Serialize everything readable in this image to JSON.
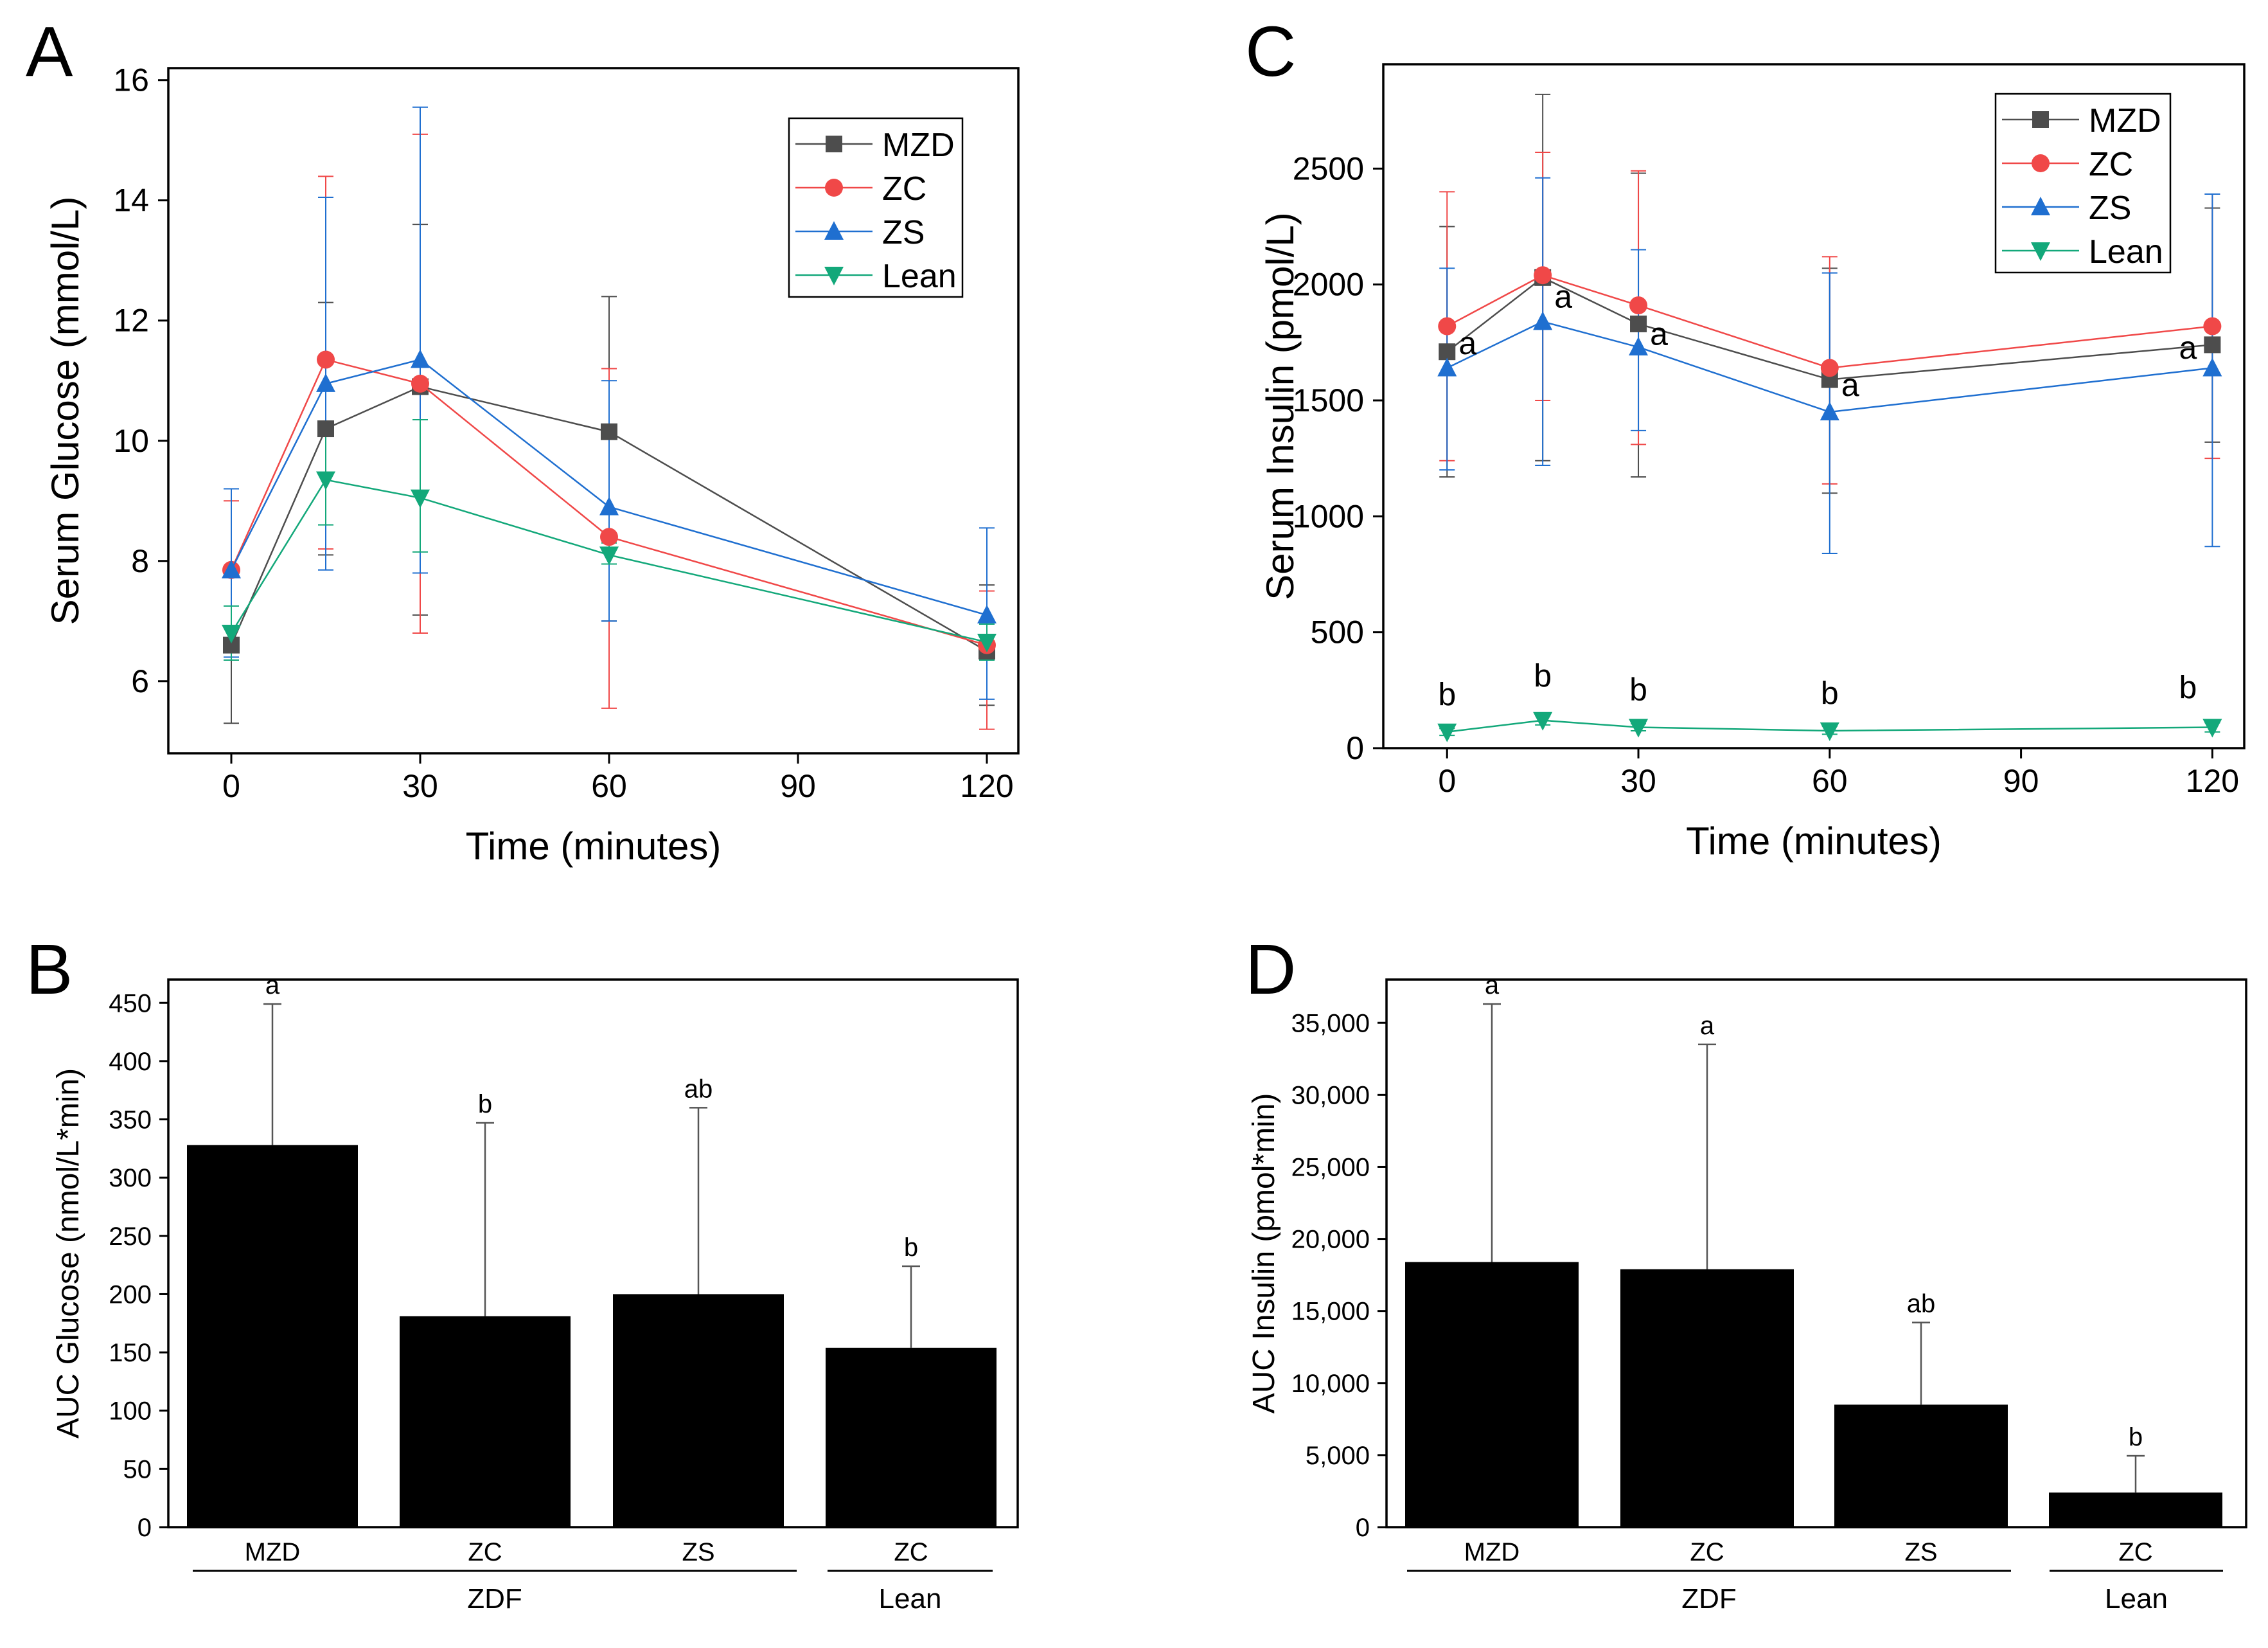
{
  "chart_data": [
    {
      "panel": "A",
      "type": "line",
      "xlabel": "Time (minutes)",
      "ylabel": "Serum Glucose (mmol/L)",
      "xlim": [
        -10,
        125
      ],
      "ylim": [
        4.8,
        16.2
      ],
      "xticks": [
        0,
        30,
        60,
        90,
        120
      ],
      "yticks": [
        6,
        8,
        10,
        12,
        14,
        16
      ],
      "x": [
        0,
        15,
        30,
        60,
        120
      ],
      "legend_position": "top-right",
      "series": [
        {
          "name": "MZD",
          "color": "#4d4d4d",
          "marker": "square",
          "values": [
            6.6,
            10.2,
            10.9,
            10.15,
            6.5
          ],
          "err_high": [
            6.6,
            12.3,
            13.6,
            12.4,
            7.6
          ],
          "err_low": [
            5.3,
            8.1,
            7.1,
            7.0,
            5.6
          ]
        },
        {
          "name": "ZC",
          "color": "#f04848",
          "marker": "circle",
          "values": [
            7.85,
            11.35,
            10.95,
            8.4,
            6.6
          ],
          "err_high": [
            9.0,
            14.4,
            15.1,
            11.2,
            7.5
          ],
          "err_low": [
            6.5,
            8.2,
            6.8,
            5.55,
            5.2
          ]
        },
        {
          "name": "ZS",
          "color": "#1f6fd0",
          "marker": "triangle-up",
          "values": [
            7.85,
            10.95,
            11.35,
            8.9,
            7.1
          ],
          "err_high": [
            9.2,
            14.05,
            15.55,
            11.0,
            8.55
          ],
          "err_low": [
            6.4,
            7.85,
            7.8,
            7.0,
            5.7
          ]
        },
        {
          "name": "Lean",
          "color": "#13a87a",
          "marker": "triangle-down",
          "values": [
            6.8,
            9.35,
            9.05,
            8.1,
            6.65
          ],
          "err_high": [
            7.25,
            10.3,
            10.35,
            8.3,
            6.95
          ],
          "err_low": [
            6.35,
            8.6,
            8.15,
            7.95,
            6.35
          ]
        }
      ]
    },
    {
      "panel": "B",
      "type": "bar",
      "ylabel": "AUC Glucose (nmol/L*min)",
      "ylim": [
        0,
        470
      ],
      "yticks": [
        0,
        50,
        100,
        150,
        200,
        250,
        300,
        350,
        400,
        450
      ],
      "categories": [
        "MZD",
        "ZC",
        "ZS",
        "ZC"
      ],
      "values": [
        328,
        181,
        200,
        154
      ],
      "err_high": [
        449,
        347,
        360,
        224
      ],
      "letters": [
        "a",
        "b",
        "ab",
        "b"
      ],
      "groups": [
        {
          "label": "ZDF",
          "members": [
            0,
            1,
            2
          ]
        },
        {
          "label": "Lean",
          "members": [
            3
          ]
        }
      ]
    },
    {
      "panel": "C",
      "type": "line",
      "xlabel": "Time (minutes)",
      "ylabel": "Serum Insulin (pmol/L)",
      "xlim": [
        -10,
        125
      ],
      "ylim": [
        0,
        2950
      ],
      "xticks": [
        0,
        30,
        60,
        90,
        120
      ],
      "yticks": [
        0,
        500,
        1000,
        1500,
        2000,
        2500
      ],
      "x": [
        0,
        15,
        30,
        60,
        120
      ],
      "legend_position": "top-right",
      "series": [
        {
          "name": "MZD",
          "color": "#4d4d4d",
          "marker": "square",
          "values": [
            1710,
            2030,
            1830,
            1590,
            1740
          ],
          "err_high": [
            2250,
            2820,
            2480,
            2070,
            2330
          ],
          "err_low": [
            1170,
            1240,
            1170,
            1100,
            1320
          ]
        },
        {
          "name": "ZC",
          "color": "#f04848",
          "marker": "circle",
          "values": [
            1820,
            2040,
            1910,
            1640,
            1820
          ],
          "err_high": [
            2400,
            2570,
            2490,
            2120,
            2390
          ],
          "err_low": [
            1240,
            1500,
            1310,
            1140,
            1250
          ]
        },
        {
          "name": "ZS",
          "color": "#1f6fd0",
          "marker": "triangle-up",
          "values": [
            1640,
            1840,
            1730,
            1450,
            1640
          ],
          "err_high": [
            2070,
            2460,
            2150,
            2050,
            2390
          ],
          "err_low": [
            1200,
            1220,
            1370,
            840,
            870
          ]
        },
        {
          "name": "Lean",
          "color": "#13a87a",
          "marker": "triangle-down",
          "values": [
            70,
            120,
            90,
            75,
            90
          ],
          "err_high": [
            85,
            140,
            105,
            95,
            110
          ],
          "err_low": [
            55,
            100,
            75,
            60,
            70
          ]
        }
      ],
      "annotations": [
        {
          "x": 0,
          "y": 1700,
          "text": "a"
        },
        {
          "x": 15,
          "y": 1900,
          "text": "a"
        },
        {
          "x": 30,
          "y": 1740,
          "text": "a"
        },
        {
          "x": 60,
          "y": 1520,
          "text": "a"
        },
        {
          "x": 120,
          "y": 1680,
          "text": "a"
        },
        {
          "x": 0,
          "y": 185,
          "text": "b"
        },
        {
          "x": 15,
          "y": 265,
          "text": "b"
        },
        {
          "x": 30,
          "y": 205,
          "text": "b"
        },
        {
          "x": 60,
          "y": 190,
          "text": "b"
        },
        {
          "x": 120,
          "y": 215,
          "text": "b"
        }
      ]
    },
    {
      "panel": "D",
      "type": "bar",
      "ylabel": "AUC Insulin (pmol*min)",
      "ylim": [
        0,
        38000
      ],
      "yticks": [
        0,
        5000,
        10000,
        15000,
        20000,
        25000,
        30000,
        35000
      ],
      "yticklabels": [
        "0",
        "5,000",
        "10,000",
        "15,000",
        "20,000",
        "25,000",
        "30,000",
        "35,000"
      ],
      "categories": [
        "MZD",
        "ZC",
        "ZS",
        "ZC"
      ],
      "values": [
        18400,
        17900,
        8500,
        2400
      ],
      "err_high": [
        36300,
        33500,
        14200,
        4950
      ],
      "letters": [
        "a",
        "a",
        "ab",
        "b"
      ],
      "groups": [
        {
          "label": "ZDF",
          "members": [
            0,
            1,
            2
          ]
        },
        {
          "label": "Lean",
          "members": [
            3
          ]
        }
      ]
    }
  ]
}
